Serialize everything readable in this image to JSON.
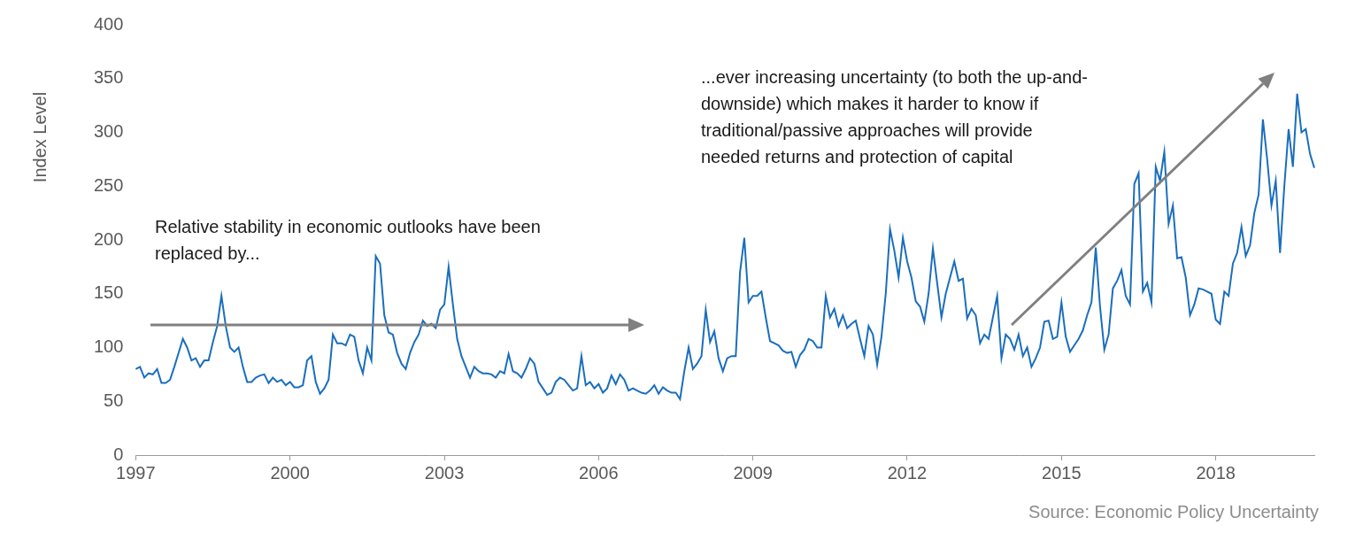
{
  "chart_data": {
    "type": "line",
    "y_label": "Index Level",
    "source": "Source: Economic Policy Uncertainty",
    "annotations": [
      {
        "text": [
          "Relative stability in economic outlooks have been",
          "replaced by..."
        ]
      },
      {
        "text": [
          "...ever increasing uncertainty (to both the up-and-",
          "downside) which makes it harder to know if",
          "traditional/passive approaches will provide",
          "needed returns and protection of capital"
        ]
      }
    ],
    "color": "#1a6ebd",
    "grid": false,
    "ylim": [
      0,
      400
    ],
    "yticks": [
      0,
      50,
      100,
      150,
      200,
      250,
      300,
      350,
      400
    ],
    "categories": [
      "1997",
      null,
      null,
      null,
      null,
      null,
      null,
      null,
      null,
      null,
      null,
      null,
      null,
      null,
      null,
      null,
      null,
      null,
      null,
      null,
      null,
      null,
      null,
      null,
      null,
      null,
      null,
      null,
      null,
      null,
      null,
      null,
      null,
      null,
      null,
      null,
      "2000",
      null,
      null,
      null,
      null,
      null,
      null,
      null,
      null,
      null,
      null,
      null,
      null,
      null,
      null,
      null,
      null,
      null,
      null,
      null,
      null,
      null,
      null,
      null,
      null,
      null,
      null,
      null,
      null,
      null,
      null,
      null,
      null,
      null,
      null,
      null,
      "2003",
      null,
      null,
      null,
      null,
      null,
      null,
      null,
      null,
      null,
      null,
      null,
      null,
      null,
      null,
      null,
      null,
      null,
      null,
      null,
      null,
      null,
      null,
      null,
      null,
      null,
      null,
      null,
      null,
      null,
      null,
      null,
      null,
      null,
      null,
      null,
      "2006",
      null,
      null,
      null,
      null,
      null,
      null,
      null,
      null,
      null,
      null,
      null,
      null,
      null,
      null,
      null,
      null,
      null,
      null,
      null,
      null,
      null,
      null,
      null,
      null,
      null,
      null,
      null,
      null,
      null,
      null,
      null,
      null,
      null,
      null,
      null,
      "2009",
      null,
      null,
      null,
      null,
      null,
      null,
      null,
      null,
      null,
      null,
      null,
      null,
      null,
      null,
      null,
      null,
      null,
      null,
      null,
      null,
      null,
      null,
      null,
      null,
      null,
      null,
      null,
      null,
      null,
      null,
      null,
      null,
      null,
      null,
      null,
      "2012",
      null,
      null,
      null,
      null,
      null,
      null,
      null,
      null,
      null,
      null,
      null,
      null,
      null,
      null,
      null,
      null,
      null,
      null,
      null,
      null,
      null,
      null,
      null,
      null,
      null,
      null,
      null,
      null,
      null,
      null,
      null,
      null,
      null,
      null,
      null,
      "2015",
      null,
      null,
      null,
      null,
      null,
      null,
      null,
      null,
      null,
      null,
      null,
      null,
      null,
      null,
      null,
      null,
      null,
      null,
      null,
      null,
      null,
      null,
      null,
      null,
      null,
      null,
      null,
      null,
      null,
      null,
      null,
      null,
      null,
      null,
      null,
      "2018",
      null,
      null,
      null,
      null,
      null,
      null,
      null,
      null,
      null,
      null,
      null,
      null,
      null,
      null,
      null,
      null,
      null,
      null,
      null,
      null,
      null,
      null,
      null
    ],
    "values": [
      80,
      82,
      72,
      76,
      75,
      80,
      67,
      67,
      70,
      82,
      95,
      108,
      100,
      88,
      90,
      82,
      88,
      88,
      105,
      120,
      148,
      120,
      100,
      96,
      100,
      82,
      68,
      68,
      72,
      74,
      75,
      67,
      72,
      68,
      70,
      65,
      68,
      63,
      63,
      65,
      88,
      92,
      68,
      57,
      62,
      70,
      112,
      104,
      104,
      102,
      112,
      110,
      88,
      76,
      100,
      88,
      185,
      178,
      130,
      114,
      112,
      95,
      85,
      80,
      95,
      105,
      112,
      125,
      120,
      122,
      118,
      135,
      140,
      175,
      140,
      108,
      92,
      82,
      72,
      82,
      78,
      76,
      76,
      75,
      72,
      78,
      76,
      94,
      78,
      76,
      72,
      80,
      90,
      85,
      68,
      62,
      56,
      58,
      68,
      72,
      70,
      65,
      60,
      62,
      92,
      65,
      68,
      62,
      66,
      58,
      62,
      74,
      66,
      75,
      70,
      60,
      62,
      60,
      58,
      57,
      60,
      65,
      57,
      63,
      60,
      58,
      58,
      52,
      78,
      100,
      80,
      85,
      92,
      135,
      105,
      115,
      90,
      78,
      90,
      92,
      92,
      170,
      202,
      142,
      148,
      148,
      152,
      128,
      106,
      104,
      102,
      97,
      95,
      96,
      82,
      93,
      98,
      108,
      106,
      100,
      100,
      148,
      128,
      136,
      120,
      130,
      118,
      122,
      125,
      108,
      92,
      120,
      112,
      84,
      110,
      150,
      210,
      190,
      165,
      202,
      180,
      165,
      143,
      138,
      124,
      150,
      192,
      160,
      128,
      150,
      165,
      180,
      162,
      164,
      127,
      136,
      130,
      104,
      112,
      108,
      128,
      148,
      90,
      112,
      108,
      98,
      112,
      92,
      100,
      82,
      90,
      100,
      124,
      125,
      108,
      110,
      142,
      110,
      96,
      102,
      108,
      116,
      130,
      142,
      193,
      138,
      98,
      112,
      155,
      162,
      172,
      148,
      140,
      252,
      262,
      152,
      160,
      142,
      268,
      255,
      282,
      215,
      232,
      183,
      184,
      165,
      130,
      140,
      155,
      154,
      152,
      150,
      126,
      122,
      152,
      148,
      178,
      188,
      212,
      185,
      195,
      225,
      242,
      312,
      275,
      232,
      255,
      188,
      250,
      303,
      268,
      336,
      300,
      303,
      280,
      267
    ]
  }
}
